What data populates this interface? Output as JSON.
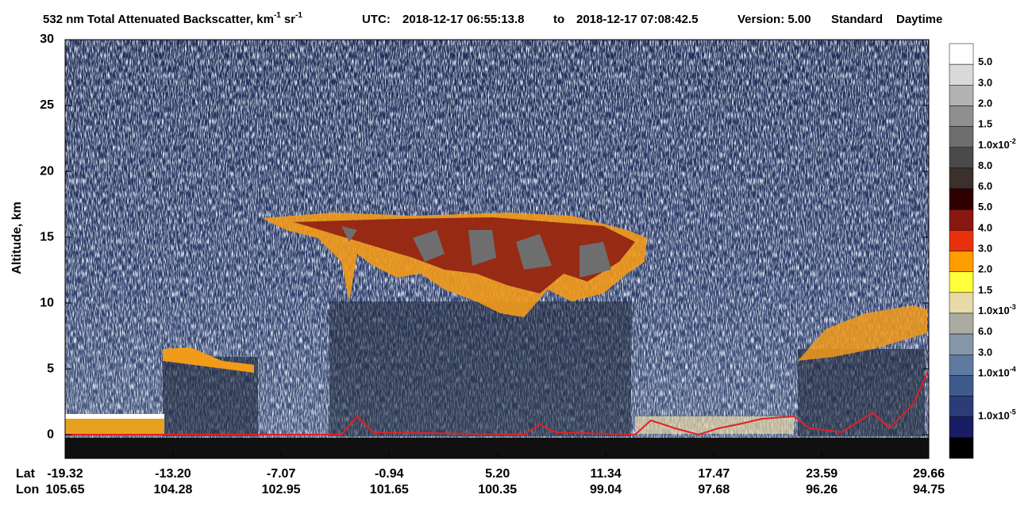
{
  "chart_data": {
    "type": "curtain",
    "title": {
      "main": "532 nm Total Attenuated Backscatter, km",
      "unit_exp": "-1",
      "unit2": "sr",
      "unit2_exp": "-1"
    },
    "utc_label": "UTC:",
    "start_time": "2018-12-17 06:55:13.8",
    "to": "to",
    "end_time": "2018-12-17 07:08:42.5",
    "version": "Version: 5.00",
    "product": "Standard",
    "daytime": "Daytime",
    "y_label": "Altitude, km",
    "ylim": [
      -1.8,
      30
    ],
    "yticks": [
      0,
      5,
      10,
      15,
      20,
      25,
      30
    ],
    "lat_label": "Lat",
    "lon_label": "Lon",
    "xlim": [
      -19.32,
      29.66
    ],
    "lat_ticks": [
      -19.32,
      {
        "value": -13.2,
        "label": "-13.20"
      },
      -7.07,
      -0.94,
      {
        "value": 5.2,
        "label": "5.20"
      },
      11.34,
      17.47,
      23.59,
      29.66
    ],
    "lon_ticks": [
      105.65,
      104.28,
      102.95,
      101.65,
      100.35,
      99.04,
      97.68,
      96.26,
      94.75
    ],
    "colorbar": {
      "colors": [
        "#ffffff",
        "#d9d9d9",
        "#b3b3b3",
        "#8f8f8f",
        "#6e6e6e",
        "#4a4a4a",
        "#3a302c",
        "#2e0000",
        "#8a1812",
        "#e8300c",
        "#ff9c00",
        "#ffff3a",
        "#e8d9a8",
        "#aaaca2",
        "#8596a8",
        "#5f7aa0",
        "#3f5a8c",
        "#2b3c78",
        "#1b1c66",
        "#000000"
      ],
      "labels": [
        {
          "text": "5.0"
        },
        {
          "text": "3.0"
        },
        {
          "text": "2.0"
        },
        {
          "text": "1.5"
        },
        {
          "text": "1.0x10",
          "exponent": "-2"
        },
        {
          "text": "8.0"
        },
        {
          "text": "6.0"
        },
        {
          "text": "5.0"
        },
        {
          "text": "4.0"
        },
        {
          "text": "3.0"
        },
        {
          "text": "2.0"
        },
        {
          "text": "1.5"
        },
        {
          "text": "1.0x10",
          "exponent": "-3"
        },
        {
          "text": "6.0"
        },
        {
          "text": "3.0"
        },
        {
          "text": "1.0x10",
          "exponent": "-4"
        },
        {
          "text": "1.0x10",
          "exponent": "-5"
        }
      ]
    }
  }
}
